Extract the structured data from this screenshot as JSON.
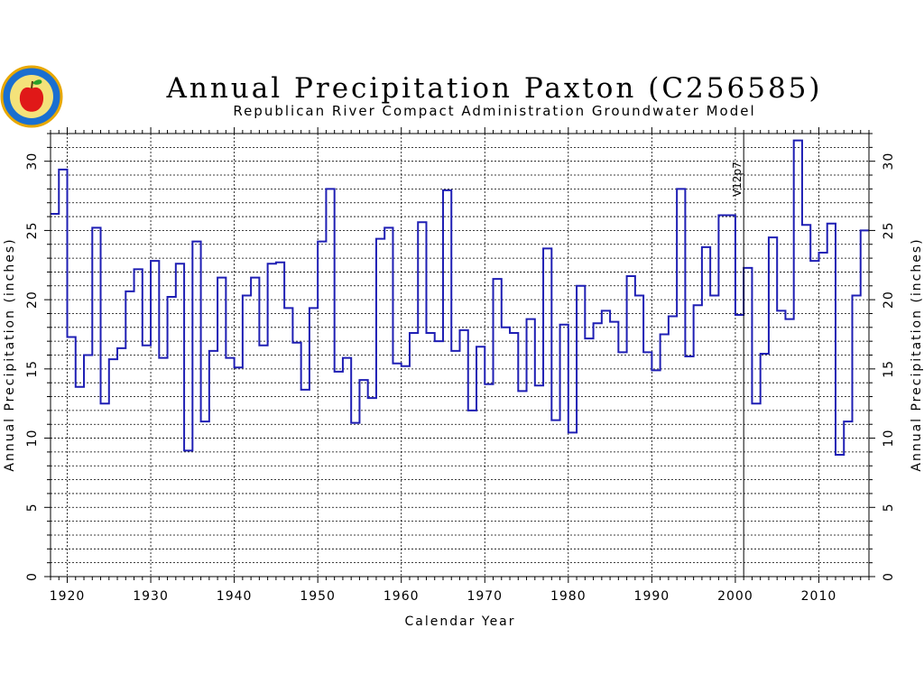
{
  "chart_data": {
    "type": "line",
    "step": true,
    "title": "Annual Precipitation Paxton (C256585)",
    "subtitle": "Republican River Compact Administration Groundwater Model",
    "xlabel": "Calendar Year",
    "ylabel": "Annual Precipitation (inches)",
    "xlim": [
      1918,
      2016
    ],
    "ylim": [
      0,
      32
    ],
    "x_ticks": [
      1920,
      1930,
      1940,
      1950,
      1960,
      1970,
      1980,
      1990,
      2000,
      2010
    ],
    "y_ticks": [
      0,
      5,
      10,
      15,
      20,
      25,
      30
    ],
    "grid": true,
    "line_color": "#1f1fb4",
    "x": [
      1918,
      1919,
      1920,
      1921,
      1922,
      1923,
      1924,
      1925,
      1926,
      1927,
      1928,
      1929,
      1930,
      1931,
      1932,
      1933,
      1934,
      1935,
      1936,
      1937,
      1938,
      1939,
      1940,
      1941,
      1942,
      1943,
      1944,
      1945,
      1946,
      1947,
      1948,
      1949,
      1950,
      1951,
      1952,
      1953,
      1954,
      1955,
      1956,
      1957,
      1958,
      1959,
      1960,
      1961,
      1962,
      1963,
      1964,
      1965,
      1966,
      1967,
      1968,
      1969,
      1970,
      1971,
      1972,
      1973,
      1974,
      1975,
      1976,
      1977,
      1978,
      1979,
      1980,
      1981,
      1982,
      1983,
      1984,
      1985,
      1986,
      1987,
      1988,
      1989,
      1990,
      1991,
      1992,
      1993,
      1994,
      1995,
      1996,
      1997,
      1998,
      1999,
      2000,
      2001,
      2002,
      2003,
      2004,
      2005,
      2006,
      2007,
      2008,
      2009,
      2010,
      2011,
      2012,
      2013,
      2014,
      2015
    ],
    "values": [
      26.2,
      29.4,
      17.3,
      13.7,
      16.0,
      25.2,
      12.5,
      15.7,
      16.5,
      20.6,
      22.2,
      16.7,
      22.8,
      15.8,
      20.2,
      22.6,
      9.1,
      24.2,
      11.2,
      16.3,
      21.6,
      15.8,
      15.1,
      20.3,
      21.6,
      16.7,
      22.6,
      22.7,
      19.4,
      16.9,
      13.5,
      19.4,
      24.2,
      28.0,
      14.8,
      15.8,
      11.1,
      14.2,
      12.9,
      24.4,
      25.2,
      15.4,
      15.2,
      17.6,
      25.6,
      17.6,
      17.0,
      27.9,
      16.3,
      17.8,
      12.0,
      16.6,
      13.9,
      21.5,
      18.0,
      17.6,
      13.4,
      18.6,
      13.8,
      23.7,
      11.3,
      18.2,
      10.4,
      21.0,
      17.2,
      18.3,
      19.2,
      18.4,
      16.2,
      21.7,
      20.3,
      16.2,
      14.9,
      17.5,
      18.8,
      28.0,
      15.9,
      19.6,
      23.8,
      20.3,
      26.1,
      26.1,
      18.9,
      22.3,
      12.5,
      16.1,
      24.5,
      19.2,
      18.6,
      31.5,
      25.4,
      22.8,
      23.4,
      25.5,
      8.8,
      11.2,
      20.3,
      25.0
    ],
    "annotations": [
      {
        "x": 2001,
        "text": "V12p7"
      }
    ]
  },
  "logo": {
    "name": "seal-logo"
  }
}
